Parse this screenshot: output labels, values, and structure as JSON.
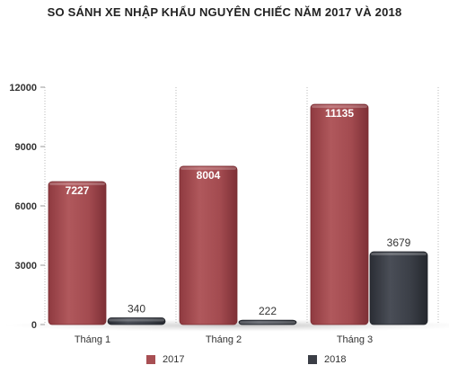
{
  "chart_data": {
    "type": "bar",
    "title": "SO SÁNH XE NHẬP KHẨU NGUYÊN CHIẾC NĂM 2017 VÀ 2018",
    "categories": [
      "Tháng 1",
      "Tháng 2",
      "Tháng 3"
    ],
    "series": [
      {
        "name": "2017",
        "values": [
          7227,
          8004,
          11135
        ],
        "color": "#a84f53"
      },
      {
        "name": "2018",
        "values": [
          340,
          222,
          3679
        ],
        "color": "#3b3e46"
      }
    ],
    "y_ticks": [
      "0",
      "3000",
      "6000",
      "9000",
      "12000"
    ],
    "ylim": [
      0,
      12000
    ],
    "xlabel": "",
    "ylabel": "",
    "grid": "vertical-dotted",
    "legend_position": "bottom"
  }
}
